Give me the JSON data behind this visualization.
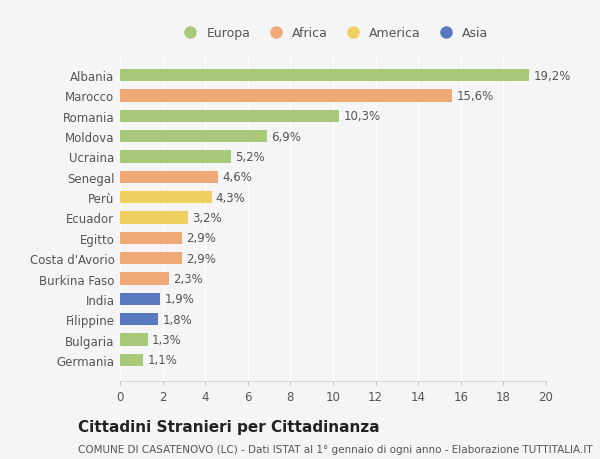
{
  "countries": [
    "Albania",
    "Marocco",
    "Romania",
    "Moldova",
    "Ucraina",
    "Senegal",
    "Perù",
    "Ecuador",
    "Egitto",
    "Costa d'Avorio",
    "Burkina Faso",
    "India",
    "Filippine",
    "Bulgaria",
    "Germania"
  ],
  "values": [
    19.2,
    15.6,
    10.3,
    6.9,
    5.2,
    4.6,
    4.3,
    3.2,
    2.9,
    2.9,
    2.3,
    1.9,
    1.8,
    1.3,
    1.1
  ],
  "continents": [
    "Europa",
    "Africa",
    "Europa",
    "Europa",
    "Europa",
    "Africa",
    "America",
    "America",
    "Africa",
    "Africa",
    "Africa",
    "Asia",
    "Asia",
    "Europa",
    "Europa"
  ],
  "colors": {
    "Europa": "#a8c87a",
    "Africa": "#f0aa78",
    "America": "#f0d060",
    "Asia": "#5878c0"
  },
  "legend_order": [
    "Europa",
    "Africa",
    "America",
    "Asia"
  ],
  "xlim": [
    0,
    20
  ],
  "xticks": [
    0,
    2,
    4,
    6,
    8,
    10,
    12,
    14,
    16,
    18,
    20
  ],
  "title": "Cittadini Stranieri per Cittadinanza",
  "subtitle": "COMUNE DI CASATENOVO (LC) - Dati ISTAT al 1° gennaio di ogni anno - Elaborazione TUTTITALIA.IT",
  "background_color": "#f5f5f5",
  "bar_height": 0.6,
  "label_fontsize": 8.5,
  "value_fontsize": 8.5,
  "title_fontsize": 11,
  "subtitle_fontsize": 7.5,
  "tick_fontsize": 8.5,
  "legend_fontsize": 9
}
